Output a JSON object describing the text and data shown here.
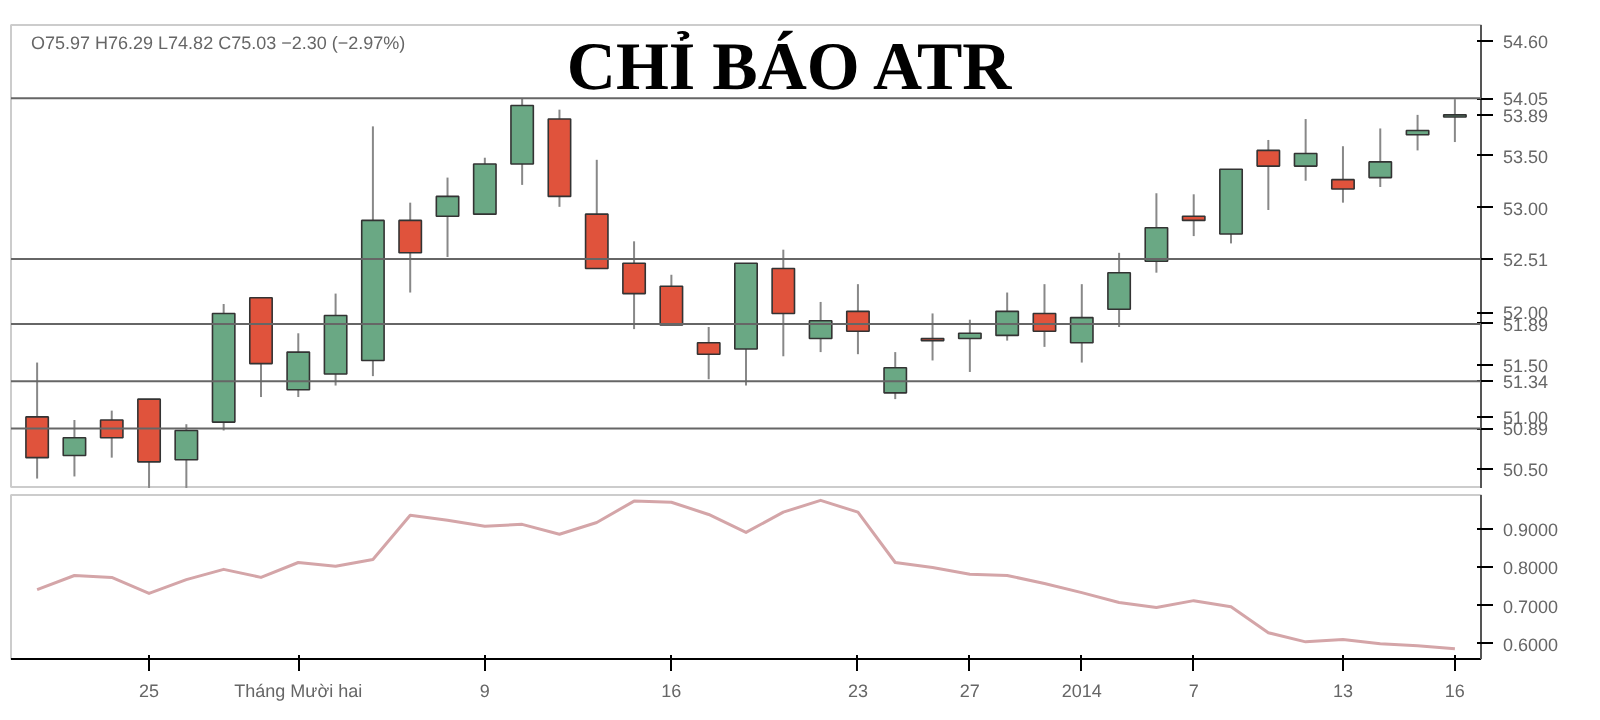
{
  "chart_data": [
    {
      "type": "candlestick",
      "title": "CHỈ BÁO ATR",
      "annotations": [
        "O75.97 H76.29 L74.82 C75.03 −2.30 (−2.97%)"
      ],
      "ohlc": [
        [
          51.0,
          51.52,
          50.41,
          50.61
        ],
        [
          50.63,
          50.97,
          50.43,
          50.8
        ],
        [
          50.97,
          51.06,
          50.61,
          50.8
        ],
        [
          51.17,
          51.17,
          50.32,
          50.57
        ],
        [
          50.59,
          50.93,
          50.32,
          50.87
        ],
        [
          50.95,
          52.08,
          50.87,
          51.99
        ],
        [
          52.14,
          52.14,
          51.19,
          51.51
        ],
        [
          51.26,
          51.8,
          51.19,
          51.62
        ],
        [
          51.41,
          52.18,
          51.3,
          51.97
        ],
        [
          51.54,
          53.78,
          51.39,
          52.88
        ],
        [
          52.88,
          53.05,
          52.19,
          52.57
        ],
        [
          52.92,
          53.29,
          52.53,
          53.11
        ],
        [
          52.94,
          53.48,
          52.94,
          53.42
        ],
        [
          53.42,
          54.05,
          53.22,
          53.98
        ],
        [
          53.85,
          53.94,
          53.01,
          53.11
        ],
        [
          52.94,
          53.46,
          52.42,
          52.42
        ],
        [
          52.47,
          52.68,
          51.84,
          52.18
        ],
        [
          52.25,
          52.36,
          51.88,
          51.88
        ],
        [
          51.71,
          51.86,
          51.36,
          51.6
        ],
        [
          51.65,
          52.47,
          51.3,
          52.47
        ],
        [
          52.42,
          52.6,
          51.58,
          51.99
        ],
        [
          51.75,
          52.1,
          51.62,
          51.92
        ],
        [
          52.01,
          52.27,
          51.6,
          51.82
        ],
        [
          51.23,
          51.62,
          51.17,
          51.47
        ],
        [
          51.75,
          51.99,
          51.54,
          51.73
        ],
        [
          51.75,
          51.93,
          51.43,
          51.8
        ],
        [
          51.78,
          52.19,
          51.73,
          52.01
        ],
        [
          51.99,
          52.27,
          51.67,
          51.82
        ],
        [
          51.71,
          52.27,
          51.52,
          51.95
        ],
        [
          52.03,
          52.57,
          51.86,
          52.38
        ],
        [
          52.49,
          53.14,
          52.38,
          52.81
        ],
        [
          52.92,
          53.13,
          52.73,
          52.88
        ],
        [
          52.75,
          53.37,
          52.66,
          53.37
        ],
        [
          53.55,
          53.65,
          52.98,
          53.4
        ],
        [
          53.4,
          53.85,
          53.26,
          53.52
        ],
        [
          53.27,
          53.59,
          53.05,
          53.18
        ],
        [
          53.29,
          53.76,
          53.2,
          53.44
        ],
        [
          53.7,
          53.89,
          53.55,
          53.74
        ],
        [
          53.87,
          54.04,
          53.63,
          53.89
        ]
      ],
      "colors": [
        "#e0533c",
        "#6aa884",
        "#e0533c",
        "#e0533c",
        "#6aa884",
        "#6aa884",
        "#e0533c",
        "#6aa884",
        "#6aa884",
        "#6aa884",
        "#e0533c",
        "#6aa884",
        "#6aa884",
        "#6aa884",
        "#e0533c",
        "#e0533c",
        "#e0533c",
        "#e0533c",
        "#e0533c",
        "#6aa884",
        "#e0533c",
        "#6aa884",
        "#e0533c",
        "#6aa884",
        "#e0533c",
        "#6aa884",
        "#6aa884",
        "#e0533c",
        "#6aa884",
        "#6aa884",
        "#6aa884",
        "#e0533c",
        "#6aa884",
        "#e0533c",
        "#6aa884",
        "#e0533c",
        "#6aa884",
        "#6aa884",
        "#6aa884"
      ],
      "ylim": [
        50.31,
        54.75
      ],
      "yticks": [
        {
          "value": 50.5,
          "label": "50.50"
        },
        {
          "value": 51.0,
          "label": "51.00"
        },
        {
          "value": 51.5,
          "label": "51.50"
        },
        {
          "value": 52.0,
          "label": "52.00"
        },
        {
          "value": 53.0,
          "label": "53.00"
        },
        {
          "value": 53.5,
          "label": "53.50"
        },
        {
          "value": 53.89,
          "label": "53.89"
        },
        {
          "value": 54.6,
          "label": "54.60"
        }
      ],
      "ref_lines": [
        {
          "axis": "y",
          "value": 54.05,
          "label": "54.05"
        },
        {
          "axis": "y",
          "value": 52.51,
          "label": "52.51"
        },
        {
          "axis": "y",
          "value": 51.89,
          "label": "51.89"
        },
        {
          "axis": "y",
          "value": 51.34,
          "label": "51.34"
        },
        {
          "axis": "y",
          "value": 50.89,
          "label": "50.89"
        }
      ],
      "tick_labels": "y"
    },
    {
      "type": "line",
      "categories": [
        null,
        null,
        null,
        "25",
        null,
        null,
        null,
        "Tháng Mười hai",
        null,
        null,
        null,
        null,
        "9",
        null,
        null,
        null,
        null,
        "16",
        null,
        null,
        null,
        null,
        "23",
        null,
        null,
        "27",
        null,
        null,
        "2014",
        null,
        null,
        "7",
        null,
        null,
        null,
        "13",
        null,
        null,
        "16"
      ],
      "series": [
        {
          "color": "#d4a5a8",
          "values": [
            0.742,
            0.779,
            0.774,
            0.732,
            0.768,
            0.795,
            0.774,
            0.813,
            0.803,
            0.821,
            0.937,
            0.924,
            0.908,
            0.913,
            0.887,
            0.918,
            0.974,
            0.971,
            0.939,
            0.892,
            0.945,
            0.976,
            0.945,
            0.813,
            0.8,
            0.782,
            0.779,
            0.758,
            0.734,
            0.708,
            0.695,
            0.713,
            0.697,
            0.629,
            0.605,
            0.611,
            0.6,
            0.595,
            0.587
          ]
        }
      ],
      "ylim": [
        0.56,
        0.99
      ],
      "yticks": [
        {
          "value": 0.6,
          "label": "0.6000"
        },
        {
          "value": 0.7,
          "label": "0.7000"
        },
        {
          "value": 0.8,
          "label": "0.8000"
        },
        {
          "value": 0.9,
          "label": "0.9000"
        }
      ]
    }
  ]
}
